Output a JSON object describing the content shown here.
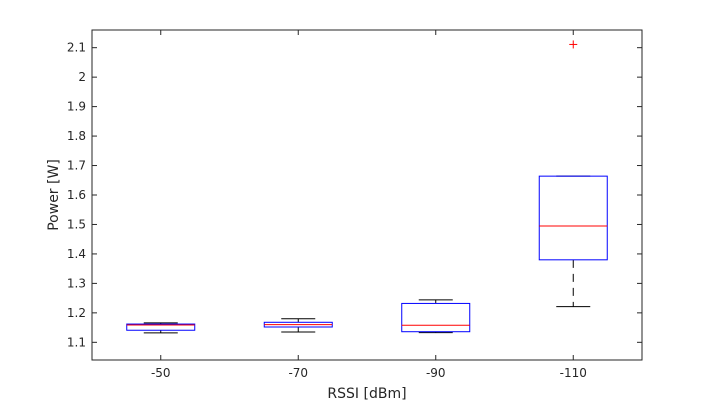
{
  "chart_data": {
    "type": "box",
    "xlabel": "RSSI [dBm]",
    "ylabel": "Power [W]",
    "categories": [
      "-50",
      "-70",
      "-90",
      "-110"
    ],
    "ylim": [
      1.04,
      2.16
    ],
    "yticks": [
      "1.1",
      "1.2",
      "1.3",
      "1.4",
      "1.5",
      "1.6",
      "1.7",
      "1.8",
      "1.9",
      "2",
      "2.1"
    ],
    "boxes": [
      {
        "category": "-50",
        "whisker_low": 1.132,
        "q1": 1.141,
        "median": 1.159,
        "q3": 1.162,
        "whisker_high": 1.166,
        "outliers": []
      },
      {
        "category": "-70",
        "whisker_low": 1.135,
        "q1": 1.152,
        "median": 1.16,
        "q3": 1.168,
        "whisker_high": 1.18,
        "outliers": []
      },
      {
        "category": "-90",
        "whisker_low": 1.133,
        "q1": 1.136,
        "median": 1.158,
        "q3": 1.232,
        "whisker_high": 1.244,
        "outliers": []
      },
      {
        "category": "-110",
        "whisker_low": 1.221,
        "q1": 1.38,
        "median": 1.495,
        "q3": 1.664,
        "whisker_high": 1.664,
        "outliers": [
          2.111
        ]
      }
    ],
    "grid": false,
    "colors": {
      "box": "#0000ff",
      "median": "#ff0000",
      "whisker": "#000000",
      "outlier": "#ff0000",
      "axis": "#262626"
    }
  }
}
